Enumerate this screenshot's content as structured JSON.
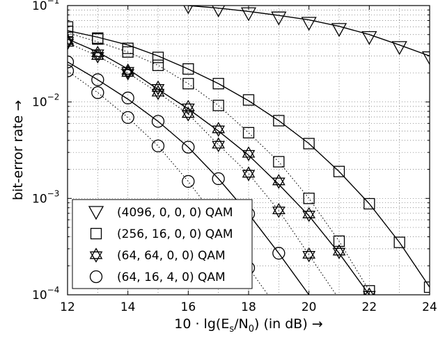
{
  "chart_data": {
    "type": "line",
    "xlabel": "10 · lg(E_s/N_0)    (in dB) →",
    "ylabel": "bit-error rate →",
    "xlim": [
      12,
      24
    ],
    "ylim": [
      0.0001,
      0.1
    ],
    "yscale": "log",
    "grid": true,
    "legend_position": "bottom-left",
    "x_ticks": [
      12,
      14,
      16,
      18,
      20,
      22,
      24
    ],
    "y_ticks": [
      {
        "value": 0.1,
        "base": "10",
        "exp": "−1"
      },
      {
        "value": 0.01,
        "base": "10",
        "exp": "−2"
      },
      {
        "value": 0.001,
        "base": "10",
        "exp": "−3"
      },
      {
        "value": 0.0001,
        "base": "10",
        "exp": "−4"
      }
    ],
    "series": [
      {
        "name": "(4096, 0, 0, 0) QAM",
        "marker": "triangle-down",
        "curve": [
          [
            16,
            0.1
          ],
          [
            17,
            0.094
          ],
          [
            18,
            0.087
          ],
          [
            19,
            0.079
          ],
          [
            20,
            0.071
          ],
          [
            21,
            0.061
          ],
          [
            22,
            0.05
          ],
          [
            23,
            0.039
          ],
          [
            24,
            0.03
          ]
        ],
        "markers_solid": [
          [
            16,
            0.098
          ],
          [
            17,
            0.091
          ],
          [
            18,
            0.083
          ],
          [
            19,
            0.075
          ],
          [
            20,
            0.066
          ],
          [
            21,
            0.057
          ],
          [
            22,
            0.047
          ],
          [
            23,
            0.037
          ],
          [
            24,
            0.029
          ]
        ],
        "markers_dotted": []
      },
      {
        "name": "(256, 16, 0, 0) QAM",
        "marker": "square",
        "curve": [
          [
            12,
            0.055
          ],
          [
            13,
            0.047
          ],
          [
            14,
            0.039
          ],
          [
            15,
            0.03
          ],
          [
            16,
            0.022
          ],
          [
            17,
            0.0155
          ],
          [
            18,
            0.0103
          ],
          [
            19,
            0.0064
          ],
          [
            20,
            0.0037
          ],
          [
            21,
            0.0019
          ],
          [
            22,
            0.00088
          ],
          [
            23,
            0.00035
          ],
          [
            24,
            0.00012
          ]
        ],
        "markers_solid": [
          [
            12,
            0.06
          ],
          [
            13,
            0.046
          ],
          [
            14,
            0.036
          ],
          [
            15,
            0.029
          ],
          [
            16,
            0.022
          ],
          [
            17,
            0.0155
          ],
          [
            18,
            0.0105
          ],
          [
            19,
            0.0064
          ],
          [
            20,
            0.0037
          ],
          [
            21,
            0.0019
          ],
          [
            22,
            0.00088
          ],
          [
            23,
            0.00035
          ],
          [
            24,
            0.00012
          ]
        ],
        "dotted_curve": [
          [
            12,
            0.052
          ],
          [
            13,
            0.042
          ],
          [
            14,
            0.033
          ],
          [
            15,
            0.024
          ],
          [
            16,
            0.0155
          ],
          [
            17,
            0.0092
          ],
          [
            18,
            0.0048
          ],
          [
            19,
            0.0024
          ],
          [
            20,
            0.001
          ],
          [
            21,
            0.00036
          ],
          [
            22,
            0.00011
          ]
        ],
        "markers_dotted": [
          [
            12,
            0.054
          ],
          [
            13,
            0.045
          ],
          [
            14,
            0.033
          ],
          [
            15,
            0.024
          ],
          [
            16,
            0.0155
          ],
          [
            17,
            0.0092
          ],
          [
            18,
            0.0048
          ],
          [
            19,
            0.0024
          ],
          [
            20,
            0.001
          ],
          [
            21,
            0.00036
          ],
          [
            22,
            0.00011
          ]
        ]
      },
      {
        "name": "(64, 64, 0, 0) QAM",
        "marker": "star",
        "curve": [
          [
            12,
            0.045
          ],
          [
            13,
            0.033
          ],
          [
            14,
            0.022
          ],
          [
            15,
            0.0135
          ],
          [
            16,
            0.0085
          ],
          [
            17,
            0.005
          ],
          [
            18,
            0.0028
          ],
          [
            19,
            0.0014
          ],
          [
            20,
            0.00066
          ],
          [
            21,
            0.00027
          ],
          [
            22,
            0.0001
          ]
        ],
        "markers_solid": [
          [
            12,
            0.043
          ],
          [
            13,
            0.032
          ],
          [
            14,
            0.021
          ],
          [
            15,
            0.014
          ],
          [
            16,
            0.0088
          ],
          [
            17,
            0.0052
          ],
          [
            18,
            0.0029
          ],
          [
            19,
            0.0015
          ],
          [
            20,
            0.00068
          ],
          [
            21,
            0.00028
          ],
          [
            22,
            0.0001
          ]
        ],
        "dotted_curve": [
          [
            12,
            0.041
          ],
          [
            13,
            0.03
          ],
          [
            14,
            0.02
          ],
          [
            15,
            0.0125
          ],
          [
            16,
            0.0075
          ],
          [
            17,
            0.0036
          ],
          [
            18,
            0.0018
          ],
          [
            19,
            0.00075
          ],
          [
            20,
            0.00026
          ],
          [
            21,
            9e-05
          ]
        ],
        "markers_dotted": [
          [
            12,
            0.041
          ],
          [
            13,
            0.03
          ],
          [
            14,
            0.02
          ],
          [
            15,
            0.0125
          ],
          [
            16,
            0.0075
          ],
          [
            17,
            0.0036
          ],
          [
            18,
            0.0018
          ],
          [
            19,
            0.00075
          ],
          [
            20,
            0.00026
          ]
        ]
      },
      {
        "name": "(64, 16, 4, 0) QAM",
        "marker": "circle",
        "curve": [
          [
            12,
            0.026
          ],
          [
            13,
            0.017
          ],
          [
            14,
            0.0107
          ],
          [
            15,
            0.0063
          ],
          [
            16,
            0.0034
          ],
          [
            17,
            0.0016
          ],
          [
            18,
            0.00069
          ],
          [
            19,
            0.00027
          ],
          [
            20,
            0.0001
          ]
        ],
        "markers_solid": [
          [
            12,
            0.026
          ],
          [
            13,
            0.017
          ],
          [
            14,
            0.011
          ],
          [
            15,
            0.0063
          ],
          [
            16,
            0.0034
          ],
          [
            17,
            0.0016
          ],
          [
            18,
            0.00069
          ],
          [
            19,
            0.00027
          ]
        ],
        "dotted_curve": [
          [
            12,
            0.021
          ],
          [
            13,
            0.0125
          ],
          [
            14,
            0.0069
          ],
          [
            15,
            0.0035
          ],
          [
            16,
            0.0015
          ],
          [
            17,
            0.00058
          ],
          [
            18,
            0.00019
          ],
          [
            19,
            7e-05
          ]
        ],
        "markers_dotted": [
          [
            12,
            0.021
          ],
          [
            13,
            0.0125
          ],
          [
            14,
            0.0069
          ],
          [
            15,
            0.0035
          ],
          [
            16,
            0.0015
          ],
          [
            17,
            0.00058
          ],
          [
            18,
            0.00019
          ]
        ]
      }
    ]
  }
}
